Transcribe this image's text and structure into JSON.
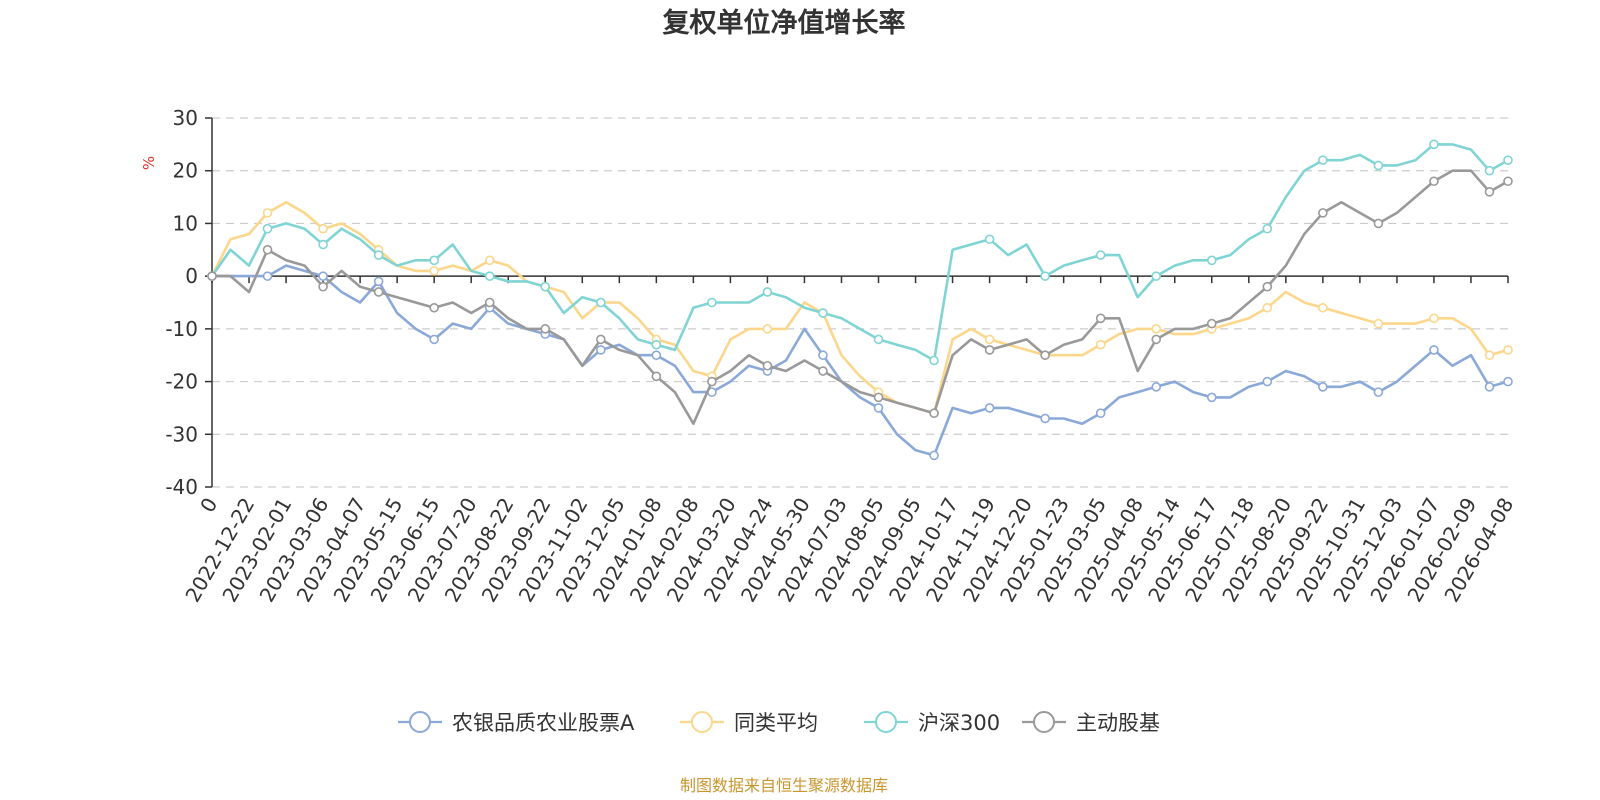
{
  "chart_data": {
    "type": "line",
    "title": "复权单位净值增长率",
    "ylabel": "%",
    "ylim": [
      -40,
      30
    ],
    "yticks": [
      30,
      20,
      10,
      0,
      -10,
      -20,
      -30,
      -40
    ],
    "x_tick_labels": [
      "0",
      "2022-12-22",
      "2023-02-01",
      "2023-03-06",
      "2023-04-07",
      "2023-05-15",
      "2023-06-15",
      "2023-07-20",
      "2023-08-22",
      "2023-09-22",
      "2023-11-02",
      "2023-12-05",
      "2024-01-08",
      "2024-02-08",
      "2024-03-20",
      "2024-04-24",
      "2024-05-30",
      "2024-07-03",
      "2024-08-05",
      "2024-09-05",
      "2024-10-17",
      "2024-11-19",
      "2024-12-20",
      "2025-01-23",
      "2025-03-05",
      "2025-04-08",
      "2025-05-14",
      "2025-06-17",
      "2025-07-18",
      "2025-08-20",
      "2025-09-22",
      "2025-10-31",
      "2025-12-03",
      "2026-01-07",
      "2026-02-09",
      "2026-04-08"
    ],
    "grid": "horizontal-dashed",
    "legend_position": "bottom",
    "series": [
      {
        "name": "农银品质农业股票A",
        "color": "#8aa8d8",
        "values": [
          0,
          0,
          0,
          0,
          2,
          1,
          0,
          -3,
          -5,
          -1,
          -7,
          -10,
          -12,
          -9,
          -10,
          -6,
          -9,
          -10,
          -11,
          -12,
          -17,
          -14,
          -13,
          -15,
          -15,
          -17,
          -22,
          -22,
          -20,
          -17,
          -18,
          -16,
          -10,
          -15,
          -20,
          -23,
          -25,
          -30,
          -33,
          -34,
          -25,
          -26,
          -25,
          -25,
          -26,
          -27,
          -27,
          -28,
          -26,
          -23,
          -22,
          -21,
          -20,
          -22,
          -23,
          -23,
          -21,
          -20,
          -18,
          -19,
          -21,
          -21,
          -20,
          -22,
          -20,
          -17,
          -14,
          -17,
          -15,
          -21,
          -20
        ]
      },
      {
        "name": "同类平均",
        "color": "#fcd68a",
        "values": [
          0,
          7,
          8,
          12,
          14,
          12,
          9,
          10,
          8,
          5,
          2,
          1,
          1,
          2,
          1,
          3,
          2,
          -1,
          -2,
          -3,
          -8,
          -5,
          -5,
          -8,
          -12,
          -13,
          -18,
          -19,
          -12,
          -10,
          -10,
          -10,
          -5,
          -7,
          -15,
          -19,
          -22,
          -24,
          -25,
          -26,
          -12,
          -10,
          -12,
          -13,
          -14,
          -15,
          -15,
          -15,
          -13,
          -11,
          -10,
          -10,
          -11,
          -11,
          -10,
          -9,
          -8,
          -6,
          -3,
          -5,
          -6,
          -7,
          -8,
          -9,
          -9,
          -9,
          -8,
          -8,
          -10,
          -15,
          -14
        ]
      },
      {
        "name": "沪深300",
        "color": "#80d4d4",
        "values": [
          0,
          5,
          2,
          9,
          10,
          9,
          6,
          9,
          7,
          4,
          2,
          3,
          3,
          6,
          1,
          0,
          -1,
          -1,
          -2,
          -7,
          -4,
          -5,
          -8,
          -12,
          -13,
          -14,
          -6,
          -5,
          -5,
          -5,
          -3,
          -4,
          -6,
          -7,
          -8,
          -10,
          -12,
          -13,
          -14,
          -16,
          5,
          6,
          7,
          4,
          6,
          0,
          2,
          3,
          4,
          4,
          -4,
          0,
          2,
          3,
          3,
          4,
          7,
          9,
          15,
          20,
          22,
          22,
          23,
          21,
          21,
          22,
          25,
          25,
          24,
          20,
          22
        ]
      },
      {
        "name": "主动股基",
        "color": "#999999",
        "values": [
          0,
          0,
          -3,
          5,
          3,
          2,
          -2,
          1,
          -2,
          -3,
          -4,
          -5,
          -6,
          -5,
          -7,
          -5,
          -8,
          -10,
          -10,
          -12,
          -17,
          -12,
          -14,
          -15,
          -19,
          -22,
          -28,
          -20,
          -18,
          -15,
          -17,
          -18,
          -16,
          -18,
          -20,
          -22,
          -23,
          -24,
          -25,
          -26,
          -15,
          -12,
          -14,
          -13,
          -12,
          -15,
          -13,
          -12,
          -8,
          -8,
          -18,
          -12,
          -10,
          -10,
          -9,
          -8,
          -5,
          -2,
          2,
          8,
          12,
          14,
          12,
          10,
          12,
          15,
          18,
          20,
          20,
          16,
          18
        ]
      }
    ]
  },
  "legend": {
    "items": [
      "农银品质农业股票A",
      "同类平均",
      "沪深300",
      "主动股基"
    ]
  },
  "footer": {
    "source": "制图数据来自恒生聚源数据库"
  }
}
